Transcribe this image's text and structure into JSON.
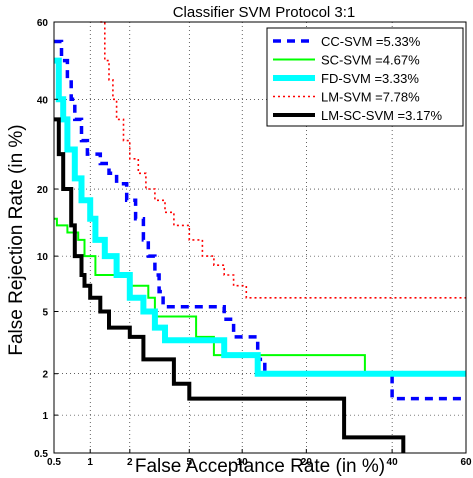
{
  "chart_data": {
    "type": "line",
    "title": "Classifier SVM Protocol 3:1",
    "xlabel": "False Acceptance Rate (in %)",
    "ylabel": "False Rejection Rate (in %)",
    "xscale": "normal-deviate",
    "yscale": "normal-deviate",
    "xlim": [
      0.5,
      60
    ],
    "ylim": [
      0.5,
      60
    ],
    "xticks": [
      "0.5",
      "1",
      "2",
      "5",
      "10",
      "20",
      "40",
      "60"
    ],
    "xtick_values": [
      0.5,
      1,
      2,
      5,
      10,
      20,
      40,
      60
    ],
    "yticks": [
      "0.5",
      "1",
      "2",
      "5",
      "10",
      "20",
      "40",
      "60"
    ],
    "ytick_values": [
      0.5,
      1,
      2,
      5,
      10,
      20,
      40,
      60
    ],
    "grid": true,
    "legend_position": "top-right",
    "series": [
      {
        "name": "CC-SVM =5.33%",
        "color": "#0000ff",
        "dash": "dashed",
        "points": [
          [
            0.5,
            55
          ],
          [
            0.58,
            55
          ],
          [
            0.58,
            50
          ],
          [
            0.65,
            50
          ],
          [
            0.65,
            45
          ],
          [
            0.7,
            45
          ],
          [
            0.7,
            40
          ],
          [
            0.75,
            40
          ],
          [
            0.75,
            35
          ],
          [
            0.85,
            35
          ],
          [
            0.85,
            30
          ],
          [
            0.95,
            30
          ],
          [
            0.95,
            27
          ],
          [
            1.2,
            27
          ],
          [
            1.2,
            25
          ],
          [
            1.4,
            25
          ],
          [
            1.4,
            23
          ],
          [
            1.6,
            23
          ],
          [
            1.6,
            21
          ],
          [
            1.9,
            21
          ],
          [
            1.9,
            18
          ],
          [
            2.2,
            18
          ],
          [
            2.2,
            15
          ],
          [
            2.5,
            15
          ],
          [
            2.5,
            12
          ],
          [
            2.7,
            12
          ],
          [
            2.7,
            10
          ],
          [
            3.0,
            10
          ],
          [
            3.0,
            8
          ],
          [
            3.2,
            8
          ],
          [
            3.2,
            6.5
          ],
          [
            3.4,
            6.5
          ],
          [
            3.4,
            5.33
          ],
          [
            8.0,
            5.33
          ],
          [
            8.0,
            4.5
          ],
          [
            9.0,
            4.5
          ],
          [
            9.0,
            3.5
          ],
          [
            12.0,
            3.5
          ],
          [
            12.0,
            2.5
          ],
          [
            13.0,
            2.5
          ],
          [
            13.0,
            2.0
          ],
          [
            40.0,
            2.0
          ],
          [
            40.0,
            1.33
          ],
          [
            60,
            1.33
          ]
        ]
      },
      {
        "name": "SC-SVM =4.67%",
        "color": "#00ff00",
        "dash": "solid",
        "points": [
          [
            0.5,
            15
          ],
          [
            0.53,
            15
          ],
          [
            0.53,
            14
          ],
          [
            0.65,
            14
          ],
          [
            0.65,
            13
          ],
          [
            0.8,
            13
          ],
          [
            0.8,
            12
          ],
          [
            0.9,
            12
          ],
          [
            0.9,
            10
          ],
          [
            1.1,
            10
          ],
          [
            1.1,
            8
          ],
          [
            2.0,
            8
          ],
          [
            2.0,
            7
          ],
          [
            2.7,
            7
          ],
          [
            2.7,
            6
          ],
          [
            3.0,
            6
          ],
          [
            3.0,
            4.67
          ],
          [
            5.5,
            4.67
          ],
          [
            5.5,
            3.5
          ],
          [
            7.0,
            3.5
          ],
          [
            7.0,
            2.67
          ],
          [
            33.0,
            2.67
          ],
          [
            33.0,
            2.0
          ],
          [
            60,
            2.0
          ]
        ]
      },
      {
        "name": "FD-SVM =3.33%",
        "color": "#00ffff",
        "dash": "solid",
        "points": [
          [
            0.5,
            50
          ],
          [
            0.55,
            50
          ],
          [
            0.55,
            40
          ],
          [
            0.6,
            40
          ],
          [
            0.6,
            35
          ],
          [
            0.65,
            35
          ],
          [
            0.65,
            28
          ],
          [
            0.75,
            28
          ],
          [
            0.75,
            22
          ],
          [
            0.85,
            22
          ],
          [
            0.85,
            18
          ],
          [
            1.0,
            18
          ],
          [
            1.0,
            15
          ],
          [
            1.1,
            15
          ],
          [
            1.1,
            12
          ],
          [
            1.3,
            12
          ],
          [
            1.3,
            10
          ],
          [
            1.6,
            10
          ],
          [
            1.6,
            8
          ],
          [
            2.0,
            8
          ],
          [
            2.0,
            6
          ],
          [
            2.5,
            6
          ],
          [
            2.5,
            5
          ],
          [
            3.0,
            5
          ],
          [
            3.0,
            4
          ],
          [
            3.5,
            4
          ],
          [
            3.5,
            3.33
          ],
          [
            8.0,
            3.33
          ],
          [
            8.0,
            2.67
          ],
          [
            12.0,
            2.67
          ],
          [
            12.0,
            2.0
          ],
          [
            60,
            2.0
          ]
        ]
      },
      {
        "name": "LM-SVM =7.78%",
        "color": "#ff0000",
        "dash": "dotted",
        "points": [
          [
            1.2,
            60
          ],
          [
            1.3,
            60
          ],
          [
            1.3,
            50
          ],
          [
            1.4,
            50
          ],
          [
            1.4,
            45
          ],
          [
            1.5,
            45
          ],
          [
            1.5,
            40
          ],
          [
            1.6,
            40
          ],
          [
            1.6,
            35
          ],
          [
            1.8,
            35
          ],
          [
            1.8,
            30
          ],
          [
            2.0,
            30
          ],
          [
            2.0,
            26
          ],
          [
            2.3,
            26
          ],
          [
            2.3,
            23
          ],
          [
            2.6,
            23
          ],
          [
            2.6,
            20
          ],
          [
            3.0,
            20
          ],
          [
            3.0,
            18
          ],
          [
            3.5,
            18
          ],
          [
            3.5,
            16
          ],
          [
            4.0,
            16
          ],
          [
            4.0,
            14
          ],
          [
            5.0,
            14
          ],
          [
            5.0,
            12
          ],
          [
            6.0,
            12
          ],
          [
            6.0,
            10
          ],
          [
            7.0,
            10
          ],
          [
            7.0,
            9
          ],
          [
            8.0,
            9
          ],
          [
            8.0,
            8
          ],
          [
            9.0,
            8
          ],
          [
            9.0,
            7
          ],
          [
            10.5,
            7
          ],
          [
            10.5,
            6
          ],
          [
            60,
            6
          ]
        ]
      },
      {
        "name": "LM-SC-SVM =3.17%",
        "color": "#000000",
        "dash": "solid",
        "points": [
          [
            0.5,
            35
          ],
          [
            0.55,
            35
          ],
          [
            0.55,
            27
          ],
          [
            0.6,
            27
          ],
          [
            0.6,
            20
          ],
          [
            0.7,
            20
          ],
          [
            0.7,
            14
          ],
          [
            0.75,
            14
          ],
          [
            0.75,
            10
          ],
          [
            0.85,
            10
          ],
          [
            0.85,
            8
          ],
          [
            0.9,
            8
          ],
          [
            0.9,
            7
          ],
          [
            1.0,
            7
          ],
          [
            1.0,
            6
          ],
          [
            1.2,
            6
          ],
          [
            1.2,
            5
          ],
          [
            1.4,
            5
          ],
          [
            1.4,
            4
          ],
          [
            2.0,
            4
          ],
          [
            2.0,
            3.5
          ],
          [
            2.5,
            3.5
          ],
          [
            2.5,
            2.5
          ],
          [
            4.0,
            2.5
          ],
          [
            4.0,
            1.7
          ],
          [
            5.0,
            1.7
          ],
          [
            5.0,
            1.33
          ],
          [
            28.0,
            1.33
          ],
          [
            28.0,
            0.67
          ],
          [
            43.0,
            0.67
          ],
          [
            43.0,
            0.5
          ]
        ]
      }
    ]
  }
}
